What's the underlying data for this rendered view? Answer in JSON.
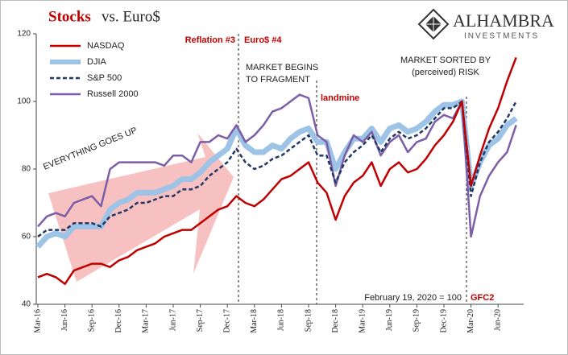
{
  "chart_data": {
    "type": "line",
    "title": {
      "main": "Stocks",
      "rest": "vs. Euro$"
    },
    "brand": {
      "name": "ALHAMBRA",
      "sub": "INVESTMENTS"
    },
    "annotations": [
      "Reflation #3",
      "Euro$ #4",
      "MARKET BEGINS",
      "TO FRAGMENT",
      "landmine",
      "MARKET SORTED BY",
      "(perceived) RISK",
      "EVERYTHING GOES UP",
      "February 19, 2020 = 100",
      "GFC2"
    ],
    "categories": [
      "Mar-16",
      null,
      null,
      "Jun-16",
      null,
      null,
      "Sep-16",
      null,
      null,
      "Dec-16",
      null,
      null,
      "Mar-17",
      null,
      null,
      "Jun-17",
      null,
      null,
      "Sep-17",
      null,
      null,
      "Dec-17",
      null,
      null,
      "Mar-18",
      null,
      null,
      "Jun-18",
      null,
      null,
      "Sep-18",
      null,
      null,
      "Dec-18",
      null,
      null,
      "Mar-19",
      null,
      null,
      "Jun-19",
      null,
      null,
      "Sep-19",
      null,
      null,
      "Dec-19",
      null,
      null,
      "Mar-20",
      null,
      null,
      "Jun-20",
      null,
      null
    ],
    "series": [
      {
        "name": "NASDAQ",
        "color": "#c00000",
        "values": [
          48,
          49,
          48,
          46,
          50,
          51,
          52,
          52,
          51,
          53,
          54,
          56,
          57,
          58,
          60,
          61,
          62,
          62,
          64,
          66,
          68,
          69,
          72,
          70,
          69,
          71,
          74,
          77,
          78,
          80,
          82,
          76,
          73,
          65,
          72,
          76,
          78,
          82,
          75,
          80,
          82,
          79,
          80,
          83,
          87,
          90,
          94,
          100,
          75,
          84,
          92,
          98,
          106,
          113
        ]
      },
      {
        "name": "DJIA",
        "color": "#9dc3e6",
        "values": [
          57,
          60,
          61,
          60,
          63,
          63,
          63,
          63,
          68,
          70,
          71,
          73,
          73,
          73,
          74,
          75,
          77,
          77,
          79,
          82,
          84,
          86,
          92,
          87,
          85,
          85,
          87,
          86,
          89,
          91,
          92,
          88,
          88,
          80,
          85,
          89,
          89,
          92,
          88,
          92,
          93,
          91,
          92,
          94,
          97,
          99,
          99,
          100,
          75,
          82,
          87,
          89,
          93,
          95
        ]
      },
      {
        "name": "S&P 500",
        "color": "#1f3864",
        "values": [
          60,
          62,
          62,
          62,
          64,
          64,
          64,
          63,
          66,
          67,
          68,
          70,
          70,
          71,
          72,
          72,
          74,
          74,
          75,
          78,
          80,
          82,
          86,
          82,
          80,
          81,
          83,
          84,
          86,
          88,
          90,
          84,
          84,
          76,
          82,
          85,
          87,
          90,
          85,
          89,
          91,
          89,
          90,
          92,
          95,
          98,
          98,
          100,
          72,
          82,
          88,
          91,
          95,
          100
        ]
      },
      {
        "name": "Russell 2000",
        "color": "#7b5ea7",
        "values": [
          63,
          66,
          67,
          66,
          70,
          71,
          72,
          69,
          80,
          82,
          82,
          82,
          82,
          82,
          81,
          84,
          84,
          82,
          88,
          88,
          90,
          89,
          93,
          88,
          90,
          93,
          97,
          98,
          100,
          102,
          101,
          90,
          88,
          75,
          84,
          90,
          88,
          91,
          84,
          88,
          90,
          85,
          88,
          89,
          94,
          96,
          95,
          100,
          60,
          72,
          78,
          82,
          85,
          93
        ]
      }
    ],
    "ylim": [
      40,
      120
    ],
    "yticks": [
      40,
      60,
      80,
      100,
      120
    ]
  }
}
